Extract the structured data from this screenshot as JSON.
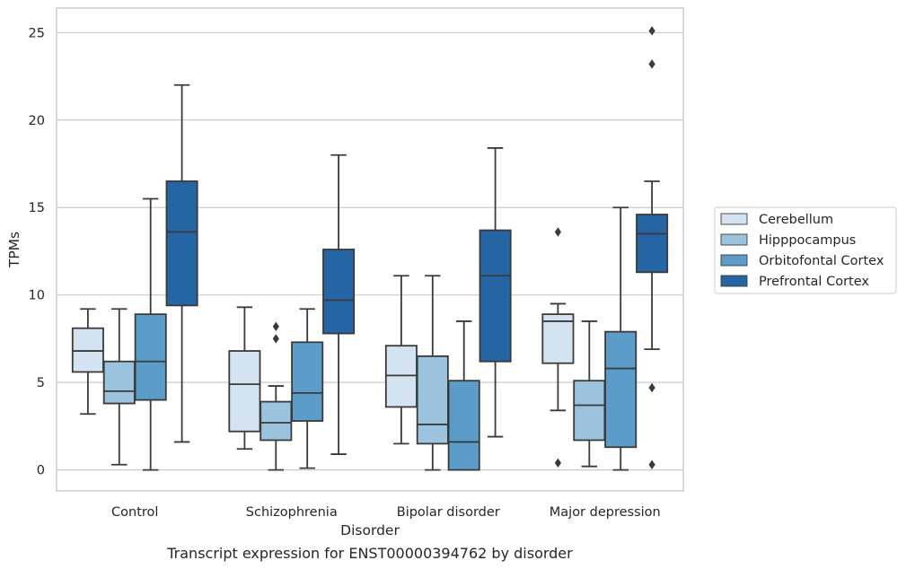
{
  "caption": "Transcript expression for ENST00000394762 by disorder",
  "chart_data": {
    "type": "box",
    "xlabel": "Disorder",
    "ylabel": "TPMs",
    "ylim": [
      -1.2,
      26.4
    ],
    "yticks": [
      0,
      5,
      10,
      15,
      20,
      25
    ],
    "grid": "horizontal",
    "legend_position": "right",
    "categories": [
      "Control",
      "Schizophrenia",
      "Bipolar disorder",
      "Major depression"
    ],
    "series": [
      {
        "name": "Cerebellum",
        "color": "#d3e3f2",
        "boxes": [
          {
            "whislo": 3.2,
            "q1": 5.6,
            "med": 6.8,
            "q3": 8.1,
            "whishi": 9.2,
            "fliers": []
          },
          {
            "whislo": 1.2,
            "q1": 2.2,
            "med": 4.9,
            "q3": 6.8,
            "whishi": 9.3,
            "fliers": []
          },
          {
            "whislo": 1.5,
            "q1": 3.6,
            "med": 5.4,
            "q3": 7.1,
            "whishi": 11.1,
            "fliers": []
          },
          {
            "whislo": 3.4,
            "q1": 6.1,
            "med": 8.5,
            "q3": 8.9,
            "whishi": 9.5,
            "fliers": [
              13.6,
              0.4
            ]
          }
        ]
      },
      {
        "name": "Hipppocampus",
        "color": "#9bc3dd",
        "boxes": [
          {
            "whislo": 0.3,
            "q1": 3.8,
            "med": 4.5,
            "q3": 6.2,
            "whishi": 9.2,
            "fliers": []
          },
          {
            "whislo": 0.0,
            "q1": 1.7,
            "med": 2.7,
            "q3": 3.9,
            "whishi": 4.8,
            "fliers": [
              7.5,
              8.2
            ]
          },
          {
            "whislo": 0.0,
            "q1": 1.5,
            "med": 2.6,
            "q3": 6.5,
            "whishi": 11.1,
            "fliers": []
          },
          {
            "whislo": 0.2,
            "q1": 1.7,
            "med": 3.7,
            "q3": 5.1,
            "whishi": 8.5,
            "fliers": []
          }
        ]
      },
      {
        "name": "Orbitofontal Cortex",
        "color": "#5b9dc8",
        "boxes": [
          {
            "whislo": 0.0,
            "q1": 4.0,
            "med": 6.2,
            "q3": 8.9,
            "whishi": 15.5,
            "fliers": []
          },
          {
            "whislo": 0.1,
            "q1": 2.8,
            "med": 4.4,
            "q3": 7.3,
            "whishi": 9.2,
            "fliers": []
          },
          {
            "whislo": 0.0,
            "q1": 0.0,
            "med": 1.6,
            "q3": 5.1,
            "whishi": 8.5,
            "fliers": []
          },
          {
            "whislo": 0.0,
            "q1": 1.3,
            "med": 5.8,
            "q3": 7.9,
            "whishi": 15.0,
            "fliers": []
          }
        ]
      },
      {
        "name": "Prefrontal Cortex",
        "color": "#2565a3",
        "boxes": [
          {
            "whislo": 1.6,
            "q1": 9.4,
            "med": 13.6,
            "q3": 16.5,
            "whishi": 22.0,
            "fliers": []
          },
          {
            "whislo": 0.9,
            "q1": 7.8,
            "med": 9.7,
            "q3": 12.6,
            "whishi": 18.0,
            "fliers": []
          },
          {
            "whislo": 1.9,
            "q1": 6.2,
            "med": 11.1,
            "q3": 13.7,
            "whishi": 18.4,
            "fliers": []
          },
          {
            "whislo": 6.9,
            "q1": 11.3,
            "med": 13.5,
            "q3": 14.6,
            "whishi": 16.5,
            "fliers": [
              25.1,
              23.2,
              4.7,
              0.3
            ]
          }
        ]
      }
    ]
  }
}
